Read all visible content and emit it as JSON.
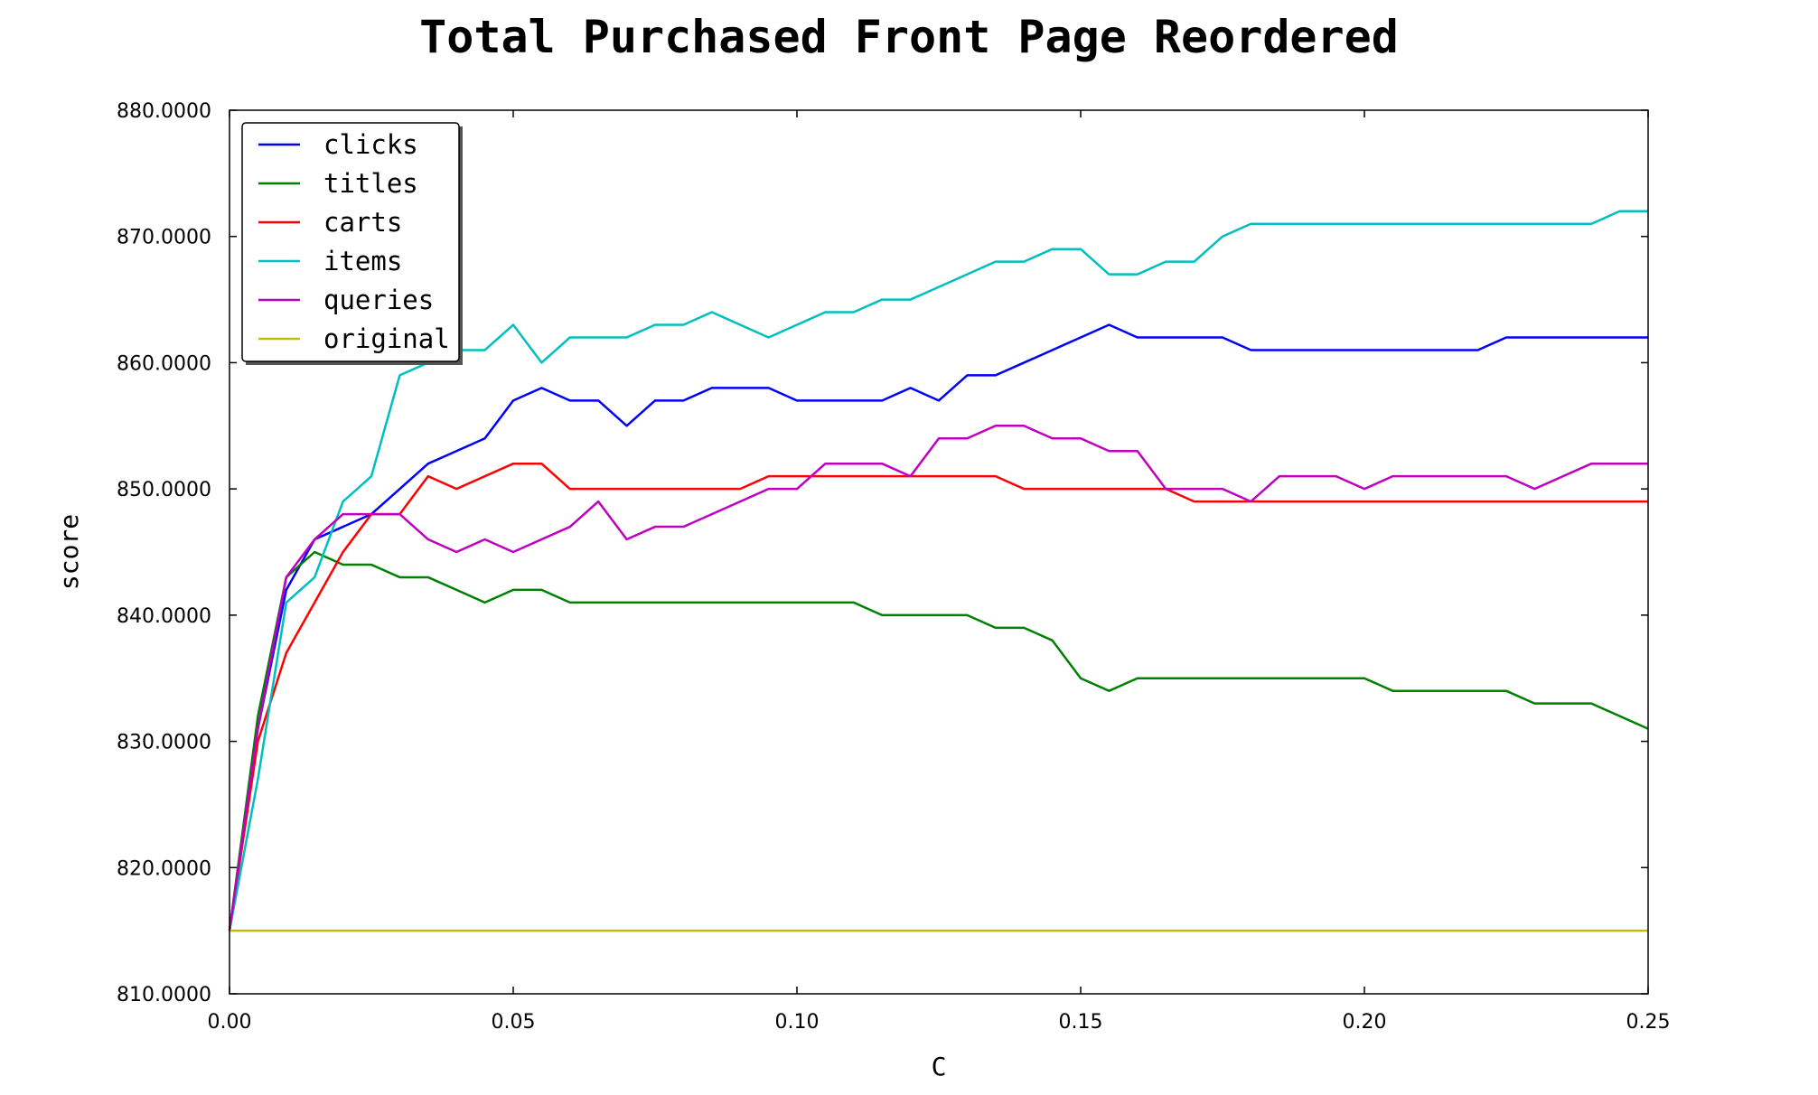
{
  "chart_data": {
    "type": "line",
    "title": "Total Purchased Front Page Reordered",
    "xlabel": "C",
    "ylabel": "score",
    "xlim": [
      0,
      0.25
    ],
    "ylim": [
      810,
      880
    ],
    "x_ticks": [
      "0.00",
      "0.05",
      "0.10",
      "0.15",
      "0.20",
      "0.25"
    ],
    "y_ticks": [
      "810.0000",
      "820.0000",
      "830.0000",
      "840.0000",
      "850.0000",
      "860.0000",
      "870.0000",
      "880.0000"
    ],
    "grid": false,
    "legend_position": "top-left",
    "x": [
      0.0,
      0.005,
      0.01,
      0.015,
      0.02,
      0.025,
      0.03,
      0.035,
      0.04,
      0.045,
      0.05,
      0.055,
      0.06,
      0.065,
      0.07,
      0.075,
      0.08,
      0.085,
      0.09,
      0.095,
      0.1,
      0.105,
      0.11,
      0.115,
      0.12,
      0.125,
      0.13,
      0.135,
      0.14,
      0.145,
      0.15,
      0.155,
      0.16,
      0.165,
      0.17,
      0.175,
      0.18,
      0.185,
      0.19,
      0.195,
      0.2,
      0.205,
      0.21,
      0.215,
      0.22,
      0.225,
      0.23,
      0.235,
      0.24,
      0.245,
      0.25
    ],
    "series": [
      {
        "name": "clicks",
        "color": "#0000ff",
        "values": [
          815,
          831,
          842,
          846,
          847,
          848,
          850,
          852,
          853,
          854,
          857,
          858,
          857,
          857,
          855,
          857,
          857,
          858,
          858,
          858,
          857,
          857,
          857,
          857,
          858,
          857,
          859,
          859,
          860,
          861,
          862,
          863,
          862,
          862,
          862,
          862,
          861,
          861,
          861,
          861,
          861,
          861,
          861,
          861,
          861,
          862,
          862,
          862,
          862,
          862,
          862
        ]
      },
      {
        "name": "titles",
        "color": "#008000",
        "values": [
          815,
          832,
          843,
          845,
          844,
          844,
          843,
          843,
          842,
          841,
          842,
          842,
          841,
          841,
          841,
          841,
          841,
          841,
          841,
          841,
          841,
          841,
          841,
          840,
          840,
          840,
          840,
          839,
          839,
          838,
          835,
          834,
          835,
          835,
          835,
          835,
          835,
          835,
          835,
          835,
          835,
          834,
          834,
          834,
          834,
          834,
          833,
          833,
          833,
          832,
          831
        ]
      },
      {
        "name": "carts",
        "color": "#ff0000",
        "values": [
          815,
          830,
          837,
          841,
          845,
          848,
          848,
          851,
          850,
          851,
          852,
          852,
          850,
          850,
          850,
          850,
          850,
          850,
          850,
          851,
          851,
          851,
          851,
          851,
          851,
          851,
          851,
          851,
          850,
          850,
          850,
          850,
          850,
          850,
          849,
          849,
          849,
          849,
          849,
          849,
          849,
          849,
          849,
          849,
          849,
          849,
          849,
          849,
          849,
          849,
          849
        ]
      },
      {
        "name": "items",
        "color": "#00bfbf",
        "values": [
          815,
          827,
          841,
          843,
          849,
          851,
          859,
          860,
          861,
          861,
          863,
          860,
          862,
          862,
          862,
          863,
          863,
          864,
          863,
          862,
          863,
          864,
          864,
          865,
          865,
          866,
          867,
          868,
          868,
          869,
          869,
          867,
          867,
          868,
          868,
          870,
          871,
          871,
          871,
          871,
          871,
          871,
          871,
          871,
          871,
          871,
          871,
          871,
          871,
          872,
          872
        ]
      },
      {
        "name": "queries",
        "color": "#bf00bf",
        "values": [
          815,
          831,
          843,
          846,
          848,
          848,
          848,
          846,
          845,
          846,
          845,
          846,
          847,
          849,
          846,
          847,
          847,
          848,
          849,
          850,
          850,
          852,
          852,
          852,
          851,
          854,
          854,
          855,
          855,
          854,
          854,
          853,
          853,
          850,
          850,
          850,
          849,
          851,
          851,
          851,
          850,
          851,
          851,
          851,
          851,
          851,
          850,
          851,
          852,
          852,
          852
        ]
      },
      {
        "name": "original",
        "color": "#bfbf00",
        "values": [
          815,
          815,
          815,
          815,
          815,
          815,
          815,
          815,
          815,
          815,
          815,
          815,
          815,
          815,
          815,
          815,
          815,
          815,
          815,
          815,
          815,
          815,
          815,
          815,
          815,
          815,
          815,
          815,
          815,
          815,
          815,
          815,
          815,
          815,
          815,
          815,
          815,
          815,
          815,
          815,
          815,
          815,
          815,
          815,
          815,
          815,
          815,
          815,
          815,
          815,
          815
        ]
      }
    ]
  }
}
